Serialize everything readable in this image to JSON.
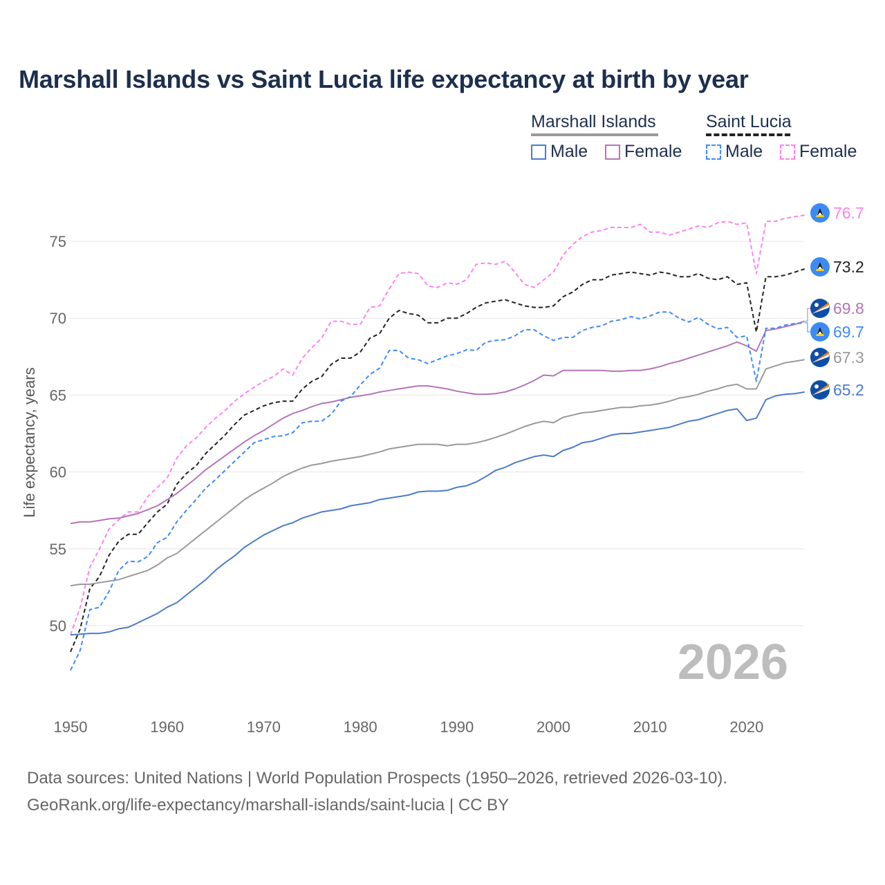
{
  "title": "Marshall Islands vs Saint Lucia life expectancy at birth by year",
  "legend": {
    "groups": [
      {
        "label": "Marshall Islands",
        "items": [
          "Male",
          "Female"
        ]
      },
      {
        "label": "Saint Lucia",
        "items": [
          "Male",
          "Female"
        ]
      }
    ]
  },
  "year_watermark": "2026",
  "footer": {
    "line1": "Data sources: United Nations | World Population Prospects (1950–2026, retrieved 2026-03-10).",
    "line2": "GeoRank.org/life-expectancy/marshall-islands/saint-lucia | CC BY"
  },
  "colors": {
    "mh_male": "#4a7bcc",
    "mh_female": "#b574b8",
    "mh_total": "#999999",
    "sl_male": "#3d8af7",
    "sl_female": "#ff80f0",
    "sl_total": "#222222"
  },
  "chart_data": {
    "type": "line",
    "title": "Marshall Islands vs Saint Lucia life expectancy at birth by year",
    "xlabel": "",
    "ylabel": "Life expectancy, years",
    "xlim": [
      1950,
      2026
    ],
    "ylim": [
      46.5,
      77.5
    ],
    "xticks": [
      1950,
      1960,
      1970,
      1980,
      1990,
      2000,
      2010,
      2020
    ],
    "yticks": [
      50,
      55,
      60,
      65,
      70,
      75
    ],
    "grid": true,
    "legend_position": "top-right",
    "x_start": 1950,
    "series": [
      {
        "key": "sl_female",
        "name": "Saint Lucia Female",
        "dashed": true,
        "end_label": "76.7",
        "flag": "saint-lucia",
        "values": [
          49.4,
          51.2,
          53.8,
          55.0,
          56.3,
          56.9,
          57.4,
          57.4,
          58.4,
          59.0,
          59.6,
          60.9,
          61.7,
          62.2,
          62.9,
          63.5,
          64.0,
          64.6,
          65.1,
          65.5,
          65.9,
          66.2,
          66.7,
          66.3,
          67.4,
          68.1,
          68.7,
          69.8,
          69.8,
          69.6,
          69.6,
          70.7,
          70.8,
          71.9,
          72.9,
          73.0,
          72.9,
          72.1,
          72.0,
          72.3,
          72.2,
          72.5,
          73.5,
          73.6,
          73.5,
          73.7,
          73.0,
          72.2,
          72.0,
          72.5,
          73.0,
          74.1,
          74.8,
          75.3,
          75.6,
          75.7,
          75.9,
          75.9,
          75.9,
          76.1,
          75.6,
          75.6,
          75.4,
          75.6,
          75.8,
          76.0,
          75.9,
          76.2,
          76.3,
          76.1,
          76.2,
          72.9,
          76.3,
          76.3,
          76.5,
          76.6,
          76.7
        ]
      },
      {
        "key": "sl_total",
        "name": "Saint Lucia",
        "dashed": true,
        "end_label": "73.2",
        "flag": "saint-lucia",
        "values": [
          48.3,
          49.8,
          52.4,
          53.2,
          54.6,
          55.5,
          55.95,
          55.95,
          56.7,
          57.4,
          57.9,
          59.2,
          59.9,
          60.4,
          61.2,
          61.8,
          62.4,
          63.1,
          63.7,
          64.0,
          64.3,
          64.5,
          64.6,
          64.6,
          65.4,
          65.9,
          66.2,
          67.0,
          67.4,
          67.4,
          67.8,
          68.7,
          69.0,
          70.0,
          70.5,
          70.3,
          70.2,
          69.7,
          69.7,
          70.0,
          70.0,
          70.3,
          70.7,
          71.0,
          71.1,
          71.2,
          71.0,
          70.8,
          70.7,
          70.7,
          70.8,
          71.4,
          71.7,
          72.2,
          72.5,
          72.5,
          72.8,
          72.9,
          73.0,
          72.9,
          72.8,
          73.0,
          72.9,
          72.7,
          72.7,
          72.9,
          72.6,
          72.5,
          72.7,
          72.2,
          72.3,
          69.1,
          72.7,
          72.7,
          72.8,
          73.0,
          73.2
        ]
      },
      {
        "key": "mh_female",
        "name": "Marshall Islands Female",
        "dashed": false,
        "end_label": "69.8",
        "flag": "marshall-islands",
        "values": [
          56.65,
          56.75,
          56.75,
          56.85,
          56.95,
          57.0,
          57.15,
          57.3,
          57.55,
          57.8,
          58.2,
          58.6,
          59.1,
          59.6,
          60.15,
          60.6,
          61.05,
          61.5,
          61.95,
          62.35,
          62.7,
          63.1,
          63.5,
          63.8,
          64.0,
          64.25,
          64.45,
          64.55,
          64.7,
          64.85,
          64.95,
          65.05,
          65.2,
          65.3,
          65.4,
          65.5,
          65.6,
          65.6,
          65.5,
          65.4,
          65.25,
          65.15,
          65.05,
          65.05,
          65.1,
          65.2,
          65.4,
          65.65,
          65.95,
          66.3,
          66.25,
          66.6,
          66.6,
          66.6,
          66.6,
          66.6,
          66.55,
          66.55,
          66.6,
          66.6,
          66.7,
          66.85,
          67.05,
          67.2,
          67.4,
          67.6,
          67.8,
          68.0,
          68.2,
          68.45,
          68.2,
          67.85,
          69.2,
          69.3,
          69.45,
          69.6,
          69.8
        ]
      },
      {
        "key": "sl_male",
        "name": "Saint Lucia Male",
        "dashed": true,
        "end_label": "69.7",
        "flag": "saint-lucia",
        "values": [
          47.1,
          48.4,
          51.05,
          51.2,
          52.25,
          53.6,
          54.2,
          54.15,
          54.5,
          55.4,
          55.75,
          56.75,
          57.5,
          58.2,
          58.95,
          59.5,
          60.1,
          60.7,
          61.3,
          61.9,
          62.1,
          62.3,
          62.35,
          62.55,
          63.2,
          63.3,
          63.3,
          63.75,
          64.6,
          64.9,
          65.65,
          66.35,
          66.75,
          67.9,
          67.9,
          67.4,
          67.3,
          67.05,
          67.3,
          67.55,
          67.7,
          67.95,
          67.9,
          68.45,
          68.55,
          68.6,
          68.85,
          69.25,
          69.25,
          68.85,
          68.55,
          68.75,
          68.75,
          69.2,
          69.4,
          69.5,
          69.8,
          69.9,
          70.1,
          69.95,
          70.15,
          70.4,
          70.4,
          70.0,
          69.75,
          70.05,
          69.6,
          69.3,
          69.4,
          68.75,
          68.85,
          65.9,
          69.35,
          69.35,
          69.55,
          69.65,
          69.7
        ]
      },
      {
        "key": "mh_total",
        "name": "Marshall Islands",
        "dashed": false,
        "end_label": "67.3",
        "flag": "marshall-islands",
        "values": [
          52.6,
          52.7,
          52.7,
          52.8,
          52.9,
          53.0,
          53.2,
          53.4,
          53.6,
          53.95,
          54.4,
          54.7,
          55.2,
          55.7,
          56.2,
          56.7,
          57.2,
          57.7,
          58.2,
          58.6,
          58.95,
          59.3,
          59.7,
          60.0,
          60.25,
          60.45,
          60.55,
          60.7,
          60.8,
          60.9,
          61.0,
          61.15,
          61.3,
          61.5,
          61.6,
          61.7,
          61.8,
          61.8,
          61.8,
          61.7,
          61.8,
          61.8,
          61.9,
          62.05,
          62.25,
          62.45,
          62.7,
          62.95,
          63.15,
          63.3,
          63.2,
          63.55,
          63.7,
          63.85,
          63.9,
          64.0,
          64.1,
          64.2,
          64.2,
          64.3,
          64.35,
          64.45,
          64.6,
          64.8,
          64.9,
          65.05,
          65.25,
          65.4,
          65.6,
          65.7,
          65.4,
          65.4,
          66.7,
          66.9,
          67.1,
          67.2,
          67.3
        ]
      },
      {
        "key": "mh_male",
        "name": "Marshall Islands Male",
        "dashed": false,
        "end_label": "65.2",
        "flag": "marshall-islands",
        "values": [
          49.4,
          49.45,
          49.5,
          49.5,
          49.6,
          49.8,
          49.9,
          50.2,
          50.5,
          50.8,
          51.2,
          51.5,
          52.0,
          52.5,
          53.0,
          53.6,
          54.1,
          54.55,
          55.1,
          55.5,
          55.9,
          56.2,
          56.5,
          56.7,
          57.0,
          57.2,
          57.4,
          57.5,
          57.6,
          57.8,
          57.9,
          58.0,
          58.2,
          58.3,
          58.4,
          58.5,
          58.7,
          58.75,
          58.75,
          58.8,
          59.0,
          59.1,
          59.35,
          59.7,
          60.1,
          60.3,
          60.6,
          60.8,
          61.0,
          61.1,
          61.0,
          61.4,
          61.6,
          61.9,
          62.0,
          62.2,
          62.4,
          62.5,
          62.5,
          62.6,
          62.7,
          62.8,
          62.9,
          63.1,
          63.3,
          63.4,
          63.6,
          63.8,
          64.0,
          64.1,
          63.35,
          63.5,
          64.7,
          64.95,
          65.05,
          65.1,
          65.2
        ]
      }
    ]
  }
}
